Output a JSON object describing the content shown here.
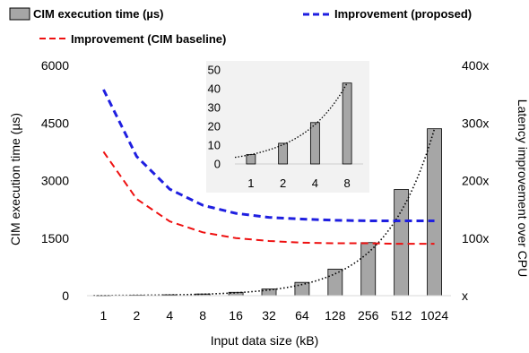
{
  "chart_data": {
    "type": "bar",
    "categories": [
      "1",
      "2",
      "4",
      "8",
      "16",
      "32",
      "64",
      "128",
      "256",
      "512",
      "1024"
    ],
    "xlabel": "Input data size (kB)",
    "ylabel": "CIM execution time (µs)",
    "y2label": "Latency improvement over CPU",
    "ylim": [
      0,
      6000
    ],
    "y_ticks": [
      "0",
      "1500",
      "3000",
      "4500",
      "6000"
    ],
    "y2lim": [
      0,
      400
    ],
    "y2_ticks": [
      "x",
      "100x",
      "200x",
      "300x",
      "400x"
    ],
    "grid": false,
    "legend_position": "top",
    "bar_color": "#a6a6a6",
    "series": [
      {
        "name": "CIM execution time (µs)",
        "type": "bar",
        "axis": "left",
        "values": [
          5,
          11,
          22,
          43,
          87,
          173,
          346,
          692,
          1383,
          2766,
          4350
        ]
      },
      {
        "name": "Improvement (proposed)",
        "type": "line",
        "style": "dashed",
        "color": "#1f1fe0",
        "axis": "right",
        "values": [
          358,
          242,
          185,
          157,
          143,
          136,
          133,
          131,
          130,
          130,
          130
        ]
      },
      {
        "name": "Improvement (CIM baseline)",
        "type": "line",
        "style": "dashed",
        "color": "#ee1111",
        "axis": "right",
        "values": [
          250,
          168,
          129,
          110,
          100,
          95,
          92,
          91,
          91,
          90,
          90
        ]
      }
    ],
    "trendline": {
      "type": "exponential",
      "style": "dotted",
      "color": "#000000"
    },
    "inset": {
      "type": "bar",
      "categories": [
        "1",
        "2",
        "4",
        "8"
      ],
      "values": [
        5,
        11,
        22,
        43
      ],
      "ylim": [
        0,
        50
      ],
      "y_ticks": [
        "0",
        "10",
        "20",
        "30",
        "40",
        "50"
      ],
      "background": "#f2f2f2"
    }
  }
}
